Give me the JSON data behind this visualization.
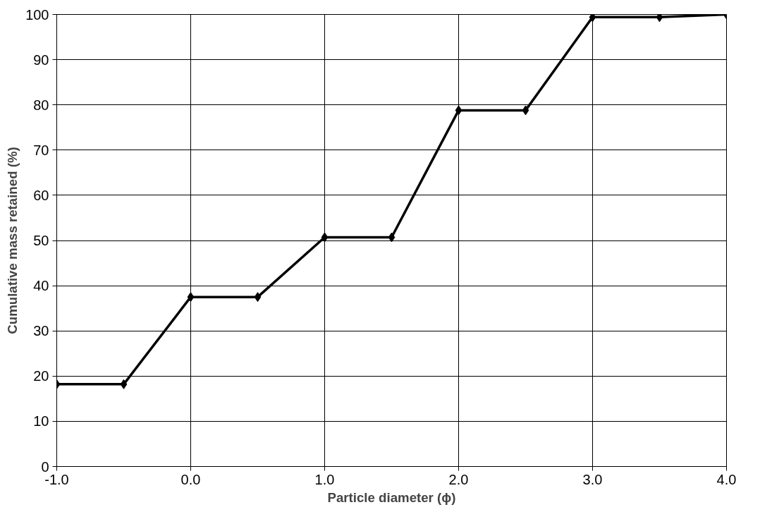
{
  "chart_data": {
    "type": "line",
    "xlabel": "Particle diameter (ϕ)",
    "ylabel": "Cumulative mass retained (%)",
    "x": [
      -1.0,
      -0.5,
      0.0,
      0.5,
      1.0,
      1.5,
      2.0,
      2.5,
      3.0,
      3.5,
      4.0
    ],
    "series": [
      {
        "color": "#000000",
        "values": [
          18.2,
          18.2,
          37.5,
          37.5,
          50.7,
          50.7,
          78.8,
          78.8,
          99.4,
          99.4,
          100
        ]
      }
    ],
    "xlim": [
      -1.0,
      4.0
    ],
    "ylim": [
      0,
      100
    ],
    "xticks": [
      {
        "value": -1.0,
        "label": "-1.0"
      },
      {
        "value": 0.0,
        "label": "0.0"
      },
      {
        "value": 1.0,
        "label": "1.0"
      },
      {
        "value": 2.0,
        "label": "2.0"
      },
      {
        "value": 3.0,
        "label": "3.0"
      },
      {
        "value": 4.0,
        "label": "4.0"
      }
    ],
    "yticks": [
      0,
      10,
      20,
      30,
      40,
      50,
      60,
      70,
      80,
      90,
      100
    ],
    "grid": true,
    "marker": "diamond",
    "line_style": "solid"
  }
}
